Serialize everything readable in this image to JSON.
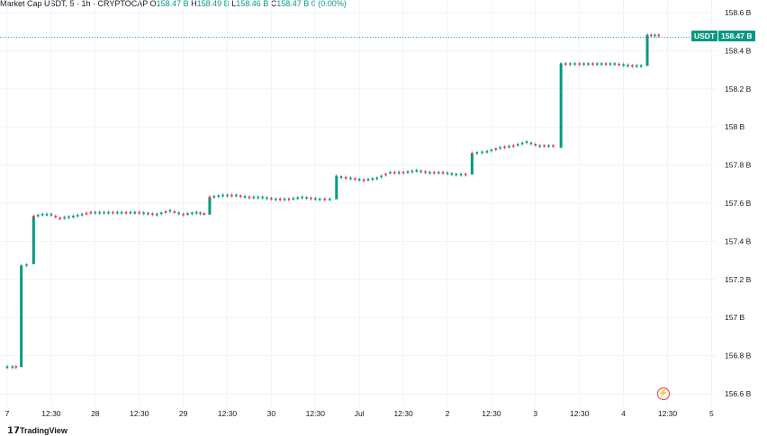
{
  "header": {
    "symbol": "Market Cap USDT, 5 · 1h · CRYPTOCAP",
    "o_label": "O",
    "o_value": "158.47 B",
    "h_label": "H",
    "h_value": "158.49 B",
    "l_label": "L",
    "l_value": "158.46 B",
    "c_label": "C",
    "c_value": "158.47 B",
    "change": "0 (0.00%)"
  },
  "price_tag": {
    "symbol": "USDT",
    "value": "158.47 B"
  },
  "logo": {
    "text": "TradingView"
  },
  "colors": {
    "up": "#089981",
    "down": "#f23645",
    "grid": "#f0f3fa",
    "text": "#131722"
  },
  "chart_data": {
    "type": "line",
    "title": "Market Cap USDT, 5 · 1h · CRYPTOCAP",
    "xlabel": "",
    "ylabel": "",
    "ylim": [
      156.55,
      158.65
    ],
    "x_range": [
      0,
      8.06
    ],
    "y_ticks": [
      {
        "v": 158.6,
        "label": "158.6 B"
      },
      {
        "v": 158.4,
        "label": "158.4 B"
      },
      {
        "v": 158.2,
        "label": "158.2 B"
      },
      {
        "v": 158.0,
        "label": "158 B"
      },
      {
        "v": 157.8,
        "label": "157.8 B"
      },
      {
        "v": 157.6,
        "label": "157.6 B"
      },
      {
        "v": 157.4,
        "label": "157.4 B"
      },
      {
        "v": 157.2,
        "label": "157.2 B"
      },
      {
        "v": 157.0,
        "label": "157 B"
      },
      {
        "v": 156.8,
        "label": "156.8 B"
      },
      {
        "v": 156.6,
        "label": "156.6 B"
      }
    ],
    "x_ticks": [
      {
        "t": 0.0,
        "label": "7"
      },
      {
        "t": 0.5,
        "label": "12:30"
      },
      {
        "t": 1.0,
        "label": "28"
      },
      {
        "t": 1.5,
        "label": "12:30"
      },
      {
        "t": 2.0,
        "label": "29"
      },
      {
        "t": 2.5,
        "label": "12:30"
      },
      {
        "t": 3.0,
        "label": "30"
      },
      {
        "t": 3.5,
        "label": "12:30"
      },
      {
        "t": 4.0,
        "label": "Jul"
      },
      {
        "t": 4.5,
        "label": "12:30"
      },
      {
        "t": 5.0,
        "label": "2"
      },
      {
        "t": 5.5,
        "label": "12:30"
      },
      {
        "t": 6.0,
        "label": "3"
      },
      {
        "t": 6.5,
        "label": "12:30"
      },
      {
        "t": 7.0,
        "label": "4"
      },
      {
        "t": 7.5,
        "label": "12:30"
      },
      {
        "t": 8.0,
        "label": "5"
      }
    ],
    "last_price": 158.47,
    "series": [
      {
        "name": "Market Cap USDT",
        "points": [
          [
            0.0,
            156.74
          ],
          [
            0.06,
            156.74
          ],
          [
            0.14,
            156.74
          ],
          [
            0.16,
            157.27
          ],
          [
            0.28,
            157.28
          ],
          [
            0.3,
            157.53
          ],
          [
            0.4,
            157.54
          ],
          [
            0.5,
            157.54
          ],
          [
            0.6,
            157.52
          ],
          [
            0.75,
            157.53
          ],
          [
            0.85,
            157.54
          ],
          [
            0.95,
            157.55
          ],
          [
            1.1,
            157.55
          ],
          [
            1.3,
            157.55
          ],
          [
            1.5,
            157.55
          ],
          [
            1.7,
            157.54
          ],
          [
            1.85,
            157.56
          ],
          [
            2.0,
            157.54
          ],
          [
            2.15,
            157.55
          ],
          [
            2.28,
            157.54
          ],
          [
            2.3,
            157.63
          ],
          [
            2.45,
            157.64
          ],
          [
            2.6,
            157.64
          ],
          [
            2.75,
            157.63
          ],
          [
            2.9,
            157.63
          ],
          [
            3.05,
            157.62
          ],
          [
            3.2,
            157.62
          ],
          [
            3.35,
            157.63
          ],
          [
            3.55,
            157.62
          ],
          [
            3.72,
            157.62
          ],
          [
            3.74,
            157.74
          ],
          [
            3.9,
            157.73
          ],
          [
            4.05,
            157.72
          ],
          [
            4.2,
            157.73
          ],
          [
            4.35,
            157.76
          ],
          [
            4.5,
            157.76
          ],
          [
            4.65,
            157.77
          ],
          [
            4.8,
            157.76
          ],
          [
            4.95,
            157.76
          ],
          [
            5.1,
            157.75
          ],
          [
            5.26,
            157.75
          ],
          [
            5.28,
            157.86
          ],
          [
            5.45,
            157.87
          ],
          [
            5.6,
            157.89
          ],
          [
            5.75,
            157.9
          ],
          [
            5.9,
            157.92
          ],
          [
            6.05,
            157.9
          ],
          [
            6.2,
            157.9
          ],
          [
            6.27,
            157.89
          ],
          [
            6.29,
            158.33
          ],
          [
            6.5,
            158.33
          ],
          [
            6.7,
            158.33
          ],
          [
            6.9,
            158.33
          ],
          [
            7.1,
            158.32
          ],
          [
            7.25,
            158.32
          ],
          [
            7.27,
            158.48
          ],
          [
            7.4,
            158.48
          ],
          [
            7.46,
            158.47
          ]
        ]
      }
    ]
  }
}
